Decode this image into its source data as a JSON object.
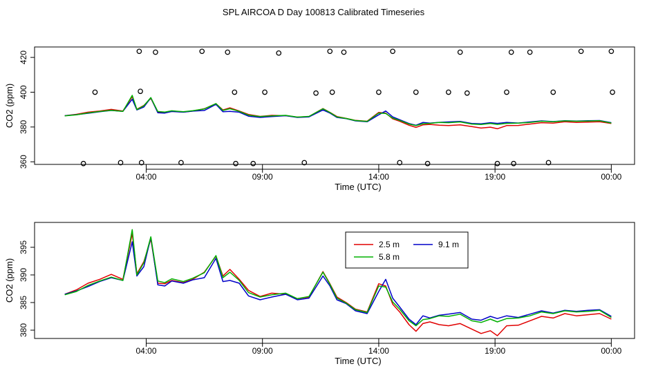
{
  "title": "SPL AIRCOA D  Day 100813  Calibrated Timeseries",
  "colors": {
    "2.5 m": "#e00000",
    "5.8 m": "#00b000",
    "9.1 m": "#0000c8",
    "axis": "#000000"
  },
  "chart_data": [
    {
      "type": "line+scatter",
      "panel": "top",
      "xlabel": "Time (UTC)",
      "ylabel": "CO2 (ppm)",
      "x_unit": "hours since 00:00 UTC (24 = next day 00:00)",
      "xlim": [
        -0.8,
        25.0
      ],
      "ylim": [
        358.5,
        426
      ],
      "x_ticks": [
        4,
        9,
        14,
        19,
        24
      ],
      "x_tick_labels": [
        "04:00",
        "09:00",
        "14:00",
        "19:00",
        "00:00"
      ],
      "y_ticks": [
        360,
        380,
        400,
        420
      ],
      "y_tick_labels": [
        "360",
        "380",
        "400",
        "420"
      ],
      "series": [
        {
          "name": "2.5 m",
          "color": "#e00000",
          "x": [
            0.5,
            1.0,
            1.5,
            2.0,
            2.5,
            3.0,
            3.4,
            3.6,
            3.9,
            4.2,
            4.5,
            4.8,
            5.1,
            5.6,
            6.0,
            6.5,
            7.0,
            7.3,
            7.6,
            8.0,
            8.4,
            8.9,
            9.4,
            10.0,
            10.5,
            11.0,
            11.6,
            11.9,
            12.2,
            12.6,
            13.0,
            13.5,
            14.0,
            14.3,
            14.6,
            14.9,
            15.3,
            15.6,
            15.9,
            16.2,
            16.6,
            17.0,
            17.5,
            18.0,
            18.4,
            18.8,
            19.1,
            19.5,
            20.0,
            20.5,
            21.0,
            21.5,
            22.0,
            22.5,
            23.0,
            23.5,
            24.0
          ],
          "values": [
            386.5,
            387.3,
            388.5,
            389.2,
            390.1,
            389.2,
            397.5,
            390.2,
            392.4,
            396.5,
            388.5,
            388.4,
            389.0,
            388.6,
            389.2,
            390.5,
            393.4,
            389.8,
            391.0,
            389.2,
            387.2,
            386.1,
            386.7,
            386.5,
            385.7,
            386.0,
            390.6,
            388.4,
            386.0,
            385.0,
            383.8,
            383.3,
            388.4,
            388.0,
            384.7,
            383.3,
            381.0,
            379.8,
            381.2,
            381.5,
            381.0,
            380.8,
            381.2,
            380.2,
            379.4,
            379.9,
            379.0,
            380.8,
            380.9,
            381.7,
            382.5,
            382.2,
            383.0,
            382.6,
            382.8,
            383.0,
            382.0
          ]
        },
        {
          "name": "5.8 m",
          "color": "#00b000",
          "x": [
            0.5,
            1.0,
            1.5,
            2.0,
            2.5,
            3.0,
            3.4,
            3.6,
            3.9,
            4.2,
            4.5,
            4.8,
            5.1,
            5.6,
            6.0,
            6.5,
            7.0,
            7.3,
            7.6,
            8.0,
            8.4,
            8.9,
            9.4,
            10.0,
            10.5,
            11.0,
            11.6,
            11.9,
            12.2,
            12.6,
            13.0,
            13.5,
            14.0,
            14.3,
            14.6,
            14.9,
            15.3,
            15.6,
            15.9,
            16.2,
            16.6,
            17.0,
            17.5,
            18.0,
            18.4,
            18.8,
            19.1,
            19.5,
            20.0,
            20.5,
            21.0,
            21.5,
            22.0,
            22.5,
            23.0,
            23.5,
            24.0
          ],
          "values": [
            386.4,
            387.0,
            388.1,
            388.9,
            389.6,
            389.0,
            398.2,
            390.0,
            392.2,
            396.9,
            388.9,
            388.6,
            389.3,
            388.8,
            389.4,
            390.4,
            393.5,
            389.5,
            390.5,
            389.0,
            386.8,
            386.0,
            386.4,
            386.7,
            385.7,
            386.1,
            390.5,
            388.3,
            385.8,
            384.9,
            383.7,
            383.2,
            388.0,
            387.8,
            385.1,
            383.8,
            381.7,
            380.8,
            381.9,
            382.1,
            382.6,
            382.5,
            382.9,
            381.7,
            381.4,
            382.0,
            381.5,
            382.1,
            382.2,
            382.6,
            383.3,
            383.0,
            383.5,
            383.3,
            383.4,
            383.6,
            382.3
          ]
        },
        {
          "name": "9.1 m",
          "color": "#0000c8",
          "x": [
            0.5,
            1.0,
            1.5,
            2.0,
            2.5,
            3.0,
            3.4,
            3.6,
            3.9,
            4.2,
            4.5,
            4.8,
            5.1,
            5.6,
            6.0,
            6.5,
            7.0,
            7.3,
            7.6,
            8.0,
            8.4,
            8.9,
            9.4,
            10.0,
            10.5,
            11.0,
            11.6,
            11.9,
            12.2,
            12.6,
            13.0,
            13.5,
            14.0,
            14.3,
            14.6,
            14.9,
            15.3,
            15.6,
            15.9,
            16.2,
            16.6,
            17.0,
            17.5,
            18.0,
            18.4,
            18.8,
            19.1,
            19.5,
            20.0,
            20.5,
            21.0,
            21.5,
            22.0,
            22.5,
            23.0,
            23.5,
            24.0
          ],
          "values": [
            386.5,
            387.1,
            387.9,
            388.8,
            389.5,
            389.0,
            396.0,
            389.8,
            391.5,
            396.8,
            388.2,
            388.0,
            388.9,
            388.5,
            389.1,
            389.5,
            393.0,
            388.8,
            389.0,
            388.5,
            386.2,
            385.5,
            386.0,
            386.5,
            385.5,
            385.8,
            389.8,
            388.0,
            385.5,
            384.8,
            383.5,
            383.0,
            387.0,
            389.2,
            385.8,
            384.2,
            382.0,
            381.0,
            382.6,
            382.2,
            382.7,
            382.9,
            383.2,
            382.0,
            381.8,
            382.5,
            382.1,
            382.6,
            382.3,
            382.9,
            383.5,
            383.1,
            383.6,
            383.4,
            383.6,
            383.7,
            382.5
          ]
        }
      ],
      "scatter_note": "black open circles; groups at roughly 423, 400 and 360 ppm",
      "scatter_points": {
        "x": [
          1.3,
          1.8,
          2.9,
          3.7,
          3.75,
          3.8,
          4.4,
          5.5,
          6.4,
          7.5,
          7.8,
          7.85,
          8.6,
          9.1,
          9.7,
          10.8,
          11.3,
          11.9,
          12.0,
          12.5,
          14.0,
          14.6,
          14.9,
          15.6,
          16.1,
          17.0,
          17.5,
          17.8,
          19.1,
          19.5,
          19.7,
          19.8,
          20.5,
          21.3,
          21.5,
          22.7,
          24.0,
          24.05
        ],
        "y": [
          359.0,
          400.0,
          359.5,
          423.5,
          400.5,
          359.5,
          423.0,
          359.5,
          423.5,
          423.0,
          400.0,
          359.0,
          359.0,
          400.0,
          422.5,
          359.5,
          399.5,
          423.5,
          400.0,
          423.0,
          400.0,
          423.5,
          359.5,
          400.0,
          359.0,
          400.0,
          423.0,
          399.5,
          359.0,
          400.0,
          423.0,
          359.0,
          423.0,
          359.5,
          400.0,
          423.5,
          423.5,
          400.0
        ]
      }
    },
    {
      "type": "line",
      "panel": "bottom",
      "xlabel": "Time (UTC)",
      "ylabel": "CO2 (ppm)",
      "x_unit": "hours since 00:00 UTC (24 = next day 00:00)",
      "xlim": [
        -0.8,
        25.0
      ],
      "ylim": [
        378.5,
        399.5
      ],
      "x_ticks": [
        4,
        9,
        14,
        19,
        24
      ],
      "x_tick_labels": [
        "04:00",
        "09:00",
        "14:00",
        "19:00",
        "00:00"
      ],
      "y_ticks": [
        380,
        385,
        390,
        395
      ],
      "y_tick_labels": [
        "380",
        "385",
        "390",
        "395"
      ],
      "legend": {
        "position": "top-center",
        "entries": [
          "2.5 m",
          "5.8 m",
          "9.1 m"
        ]
      },
      "series": [
        {
          "name": "2.5 m",
          "color": "#e00000",
          "x": [
            0.5,
            1.0,
            1.5,
            2.0,
            2.5,
            3.0,
            3.4,
            3.6,
            3.9,
            4.2,
            4.5,
            4.8,
            5.1,
            5.6,
            6.0,
            6.5,
            7.0,
            7.3,
            7.6,
            8.0,
            8.4,
            8.9,
            9.4,
            10.0,
            10.5,
            11.0,
            11.6,
            11.9,
            12.2,
            12.6,
            13.0,
            13.5,
            14.0,
            14.3,
            14.6,
            14.9,
            15.3,
            15.6,
            15.9,
            16.2,
            16.6,
            17.0,
            17.5,
            18.0,
            18.4,
            18.8,
            19.1,
            19.5,
            20.0,
            20.5,
            21.0,
            21.5,
            22.0,
            22.5,
            23.0,
            23.5,
            24.0
          ],
          "values": [
            386.5,
            387.3,
            388.5,
            389.2,
            390.1,
            389.2,
            397.5,
            390.2,
            392.4,
            396.5,
            388.5,
            388.4,
            389.0,
            388.6,
            389.2,
            390.5,
            393.4,
            389.8,
            391.0,
            389.2,
            387.2,
            386.1,
            386.7,
            386.5,
            385.7,
            386.0,
            390.6,
            388.4,
            386.0,
            385.0,
            383.8,
            383.3,
            388.4,
            388.0,
            384.7,
            383.3,
            381.0,
            379.8,
            381.2,
            381.5,
            381.0,
            380.8,
            381.2,
            380.2,
            379.4,
            379.9,
            379.0,
            380.8,
            380.9,
            381.7,
            382.5,
            382.2,
            383.0,
            382.6,
            382.8,
            383.0,
            382.0
          ]
        },
        {
          "name": "5.8 m",
          "color": "#00b000",
          "x": [
            0.5,
            1.0,
            1.5,
            2.0,
            2.5,
            3.0,
            3.4,
            3.6,
            3.9,
            4.2,
            4.5,
            4.8,
            5.1,
            5.6,
            6.0,
            6.5,
            7.0,
            7.3,
            7.6,
            8.0,
            8.4,
            8.9,
            9.4,
            10.0,
            10.5,
            11.0,
            11.6,
            11.9,
            12.2,
            12.6,
            13.0,
            13.5,
            14.0,
            14.3,
            14.6,
            14.9,
            15.3,
            15.6,
            15.9,
            16.2,
            16.6,
            17.0,
            17.5,
            18.0,
            18.4,
            18.8,
            19.1,
            19.5,
            20.0,
            20.5,
            21.0,
            21.5,
            22.0,
            22.5,
            23.0,
            23.5,
            24.0
          ],
          "values": [
            386.4,
            387.0,
            388.1,
            388.9,
            389.6,
            389.0,
            398.2,
            390.0,
            392.2,
            396.9,
            388.9,
            388.6,
            389.3,
            388.8,
            389.4,
            390.4,
            393.5,
            389.5,
            390.5,
            389.0,
            386.8,
            386.0,
            386.4,
            386.7,
            385.7,
            386.1,
            390.5,
            388.3,
            385.8,
            384.9,
            383.7,
            383.2,
            388.0,
            387.8,
            385.1,
            383.8,
            381.7,
            380.8,
            381.9,
            382.1,
            382.6,
            382.5,
            382.9,
            381.7,
            381.4,
            382.0,
            381.5,
            382.1,
            382.2,
            382.6,
            383.3,
            383.0,
            383.5,
            383.3,
            383.4,
            383.6,
            382.3
          ]
        },
        {
          "name": "9.1 m",
          "color": "#0000c8",
          "x": [
            0.5,
            1.0,
            1.5,
            2.0,
            2.5,
            3.0,
            3.4,
            3.6,
            3.9,
            4.2,
            4.5,
            4.8,
            5.1,
            5.6,
            6.0,
            6.5,
            7.0,
            7.3,
            7.6,
            8.0,
            8.4,
            8.9,
            9.4,
            10.0,
            10.5,
            11.0,
            11.6,
            11.9,
            12.2,
            12.6,
            13.0,
            13.5,
            14.0,
            14.3,
            14.6,
            14.9,
            15.3,
            15.6,
            15.9,
            16.2,
            16.6,
            17.0,
            17.5,
            18.0,
            18.4,
            18.8,
            19.1,
            19.5,
            20.0,
            20.5,
            21.0,
            21.5,
            22.0,
            22.5,
            23.0,
            23.5,
            24.0
          ],
          "values": [
            386.5,
            387.1,
            387.9,
            388.8,
            389.5,
            389.0,
            396.0,
            389.8,
            391.5,
            396.8,
            388.2,
            388.0,
            388.9,
            388.5,
            389.1,
            389.5,
            393.0,
            388.8,
            389.0,
            388.5,
            386.2,
            385.5,
            386.0,
            386.5,
            385.5,
            385.8,
            389.8,
            388.0,
            385.5,
            384.8,
            383.5,
            383.0,
            387.0,
            389.2,
            385.8,
            384.2,
            382.0,
            381.0,
            382.6,
            382.2,
            382.7,
            382.9,
            383.2,
            382.0,
            381.8,
            382.5,
            382.1,
            382.6,
            382.3,
            382.9,
            383.5,
            383.1,
            383.6,
            383.4,
            383.6,
            383.7,
            382.5
          ]
        }
      ]
    }
  ]
}
